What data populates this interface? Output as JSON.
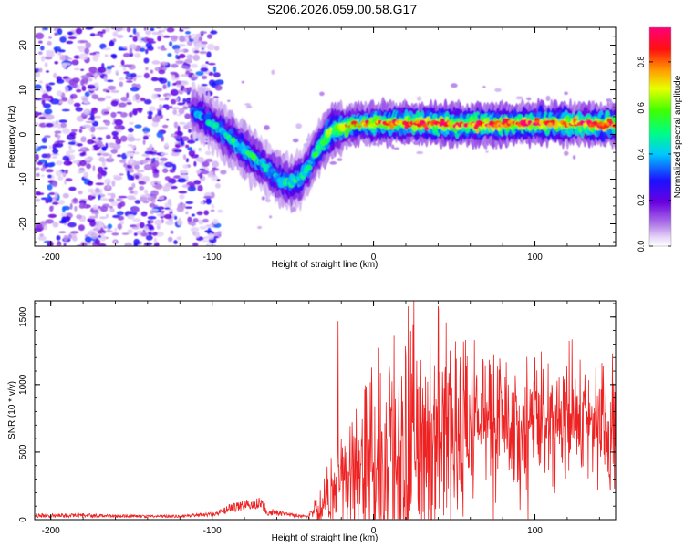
{
  "title": "S206.2026.059.00.58.G17",
  "chart_data": [
    {
      "type": "heatmap",
      "name": "spectrogram",
      "xlabel": "Height of straight line (km)",
      "ylabel": "Frequency (Hz)",
      "xlim": [
        -210,
        150
      ],
      "ylim": [
        -25,
        24
      ],
      "xticks": [
        -200,
        -100,
        0,
        100
      ],
      "yticks": [
        -20,
        -10,
        0,
        10,
        20
      ],
      "colorbar": {
        "label": "Normalized spectral amplitude",
        "range": [
          0,
          0.95
        ],
        "ticks": [
          0.0,
          0.2,
          0.4,
          0.6,
          0.8
        ],
        "tick_labels": [
          "0.0",
          "0.2",
          "0.4",
          "0.6",
          "0.8"
        ]
      },
      "ridge_track": {
        "x": [
          -210,
          -170,
          -130,
          -115,
          -105,
          -95,
          -85,
          -75,
          -65,
          -58,
          -52,
          -46,
          -40,
          -34,
          -28,
          -22,
          -15,
          -5,
          10,
          30,
          60,
          100,
          150
        ],
        "y": [
          2,
          2,
          2,
          6,
          4,
          1,
          -2,
          -5,
          -8,
          -10,
          -11,
          -10,
          -7,
          -3,
          0,
          1.5,
          2,
          2.5,
          2.5,
          2.5,
          2.2,
          2.5,
          2.2
        ],
        "peak_amplitude": [
          0.25,
          0.3,
          0.3,
          0.35,
          0.45,
          0.5,
          0.55,
          0.55,
          0.5,
          0.5,
          0.55,
          0.55,
          0.5,
          0.6,
          0.7,
          0.75,
          0.8,
          0.85,
          0.9,
          0.95,
          0.95,
          0.95,
          0.95
        ]
      }
    },
    {
      "type": "line",
      "name": "snr",
      "xlabel": "Height of straight line (km)",
      "ylabel": "SNR (10 * v/v)",
      "xlim": [
        -210,
        150
      ],
      "ylim": [
        0,
        1620
      ],
      "xticks": [
        -200,
        -100,
        0,
        100
      ],
      "yticks": [
        0,
        500,
        1000,
        1500
      ],
      "color": "#ee2222",
      "envelope": {
        "x": [
          -210,
          -180,
          -150,
          -120,
          -100,
          -90,
          -80,
          -72,
          -65,
          -55,
          -40,
          -35,
          -30,
          -20,
          -10,
          0,
          15,
          25,
          40,
          60,
          80,
          100,
          130,
          150
        ],
        "mean": [
          30,
          30,
          25,
          25,
          40,
          80,
          110,
          130,
          60,
          40,
          20,
          80,
          110,
          250,
          300,
          350,
          450,
          500,
          550,
          600,
          650,
          700,
          720,
          720
        ],
        "spread": [
          15,
          15,
          10,
          10,
          15,
          30,
          40,
          50,
          30,
          15,
          10,
          60,
          100,
          250,
          350,
          400,
          450,
          500,
          420,
          350,
          280,
          250,
          230,
          230
        ]
      },
      "spikes": [
        {
          "x": -22,
          "y": 1470
        },
        {
          "x": 22,
          "y": 1610
        },
        {
          "x": 35,
          "y": 1570
        },
        {
          "x": 40,
          "y": 1580
        },
        {
          "x": 45,
          "y": 1460
        },
        {
          "x": 57,
          "y": 1330
        },
        {
          "x": 148,
          "y": 1230
        }
      ]
    }
  ]
}
